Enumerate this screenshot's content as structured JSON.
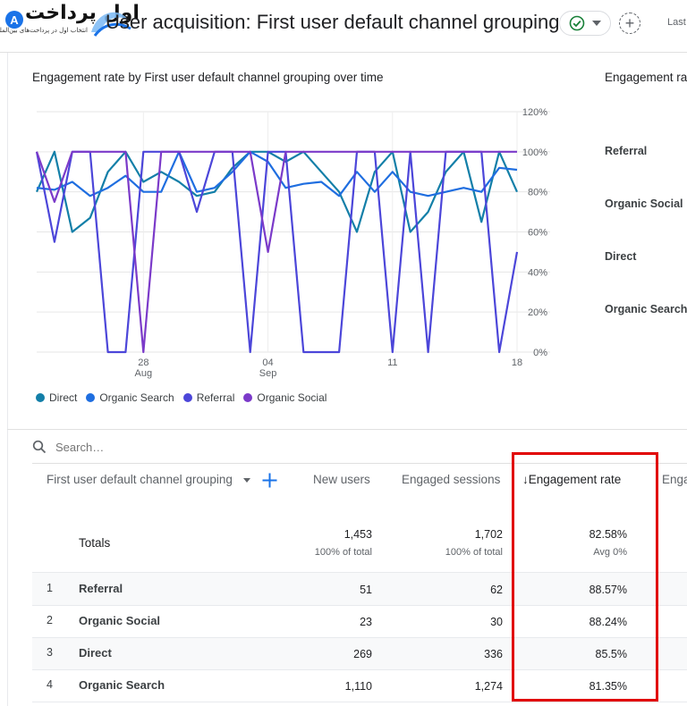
{
  "brand": {
    "badge": "A",
    "name": "اول پرداخت",
    "tagline": "انتخاب اول در پرداخت‌های بین‌المللی"
  },
  "header": {
    "title": "User acquisition: First user default channel grouping",
    "date_fragment": "Last"
  },
  "chart_card": {
    "title": "Engagement rate by First user default channel grouping over time",
    "side_title": "Engagement rate",
    "side_labels": [
      "Referral",
      "Organic Social",
      "Direct",
      "Organic Search"
    ]
  },
  "colors": {
    "direct": "#137fa8",
    "organic_search": "#1f6ee0",
    "referral": "#4c46d9",
    "organic_social": "#7b3ac9",
    "highlight": "#e10000"
  },
  "chart_data": {
    "type": "line",
    "ylabel": "",
    "xlabel": "",
    "ylim": [
      0,
      120
    ],
    "yticks": [
      "120%",
      "100%",
      "80%",
      "60%",
      "40%",
      "20%",
      "0%"
    ],
    "x_ticks": [
      {
        "day": "28",
        "month": "Aug",
        "index": 6
      },
      {
        "day": "04",
        "month": "Sep",
        "index": 13
      },
      {
        "day": "11",
        "month": "",
        "index": 20
      },
      {
        "day": "18",
        "month": "",
        "index": 27
      }
    ],
    "x_count": 28,
    "legend_position": "bottom-left",
    "grid": true,
    "series": [
      {
        "name": "Direct",
        "color": "#137fa8",
        "values": [
          80,
          100,
          60,
          67,
          90,
          100,
          85,
          90,
          85,
          78,
          80,
          92,
          100,
          100,
          95,
          100,
          90,
          80,
          60,
          90,
          100,
          60,
          70,
          90,
          100,
          65,
          100,
          80
        ]
      },
      {
        "name": "Organic Search",
        "color": "#1f6ee0",
        "values": [
          82,
          81,
          85,
          78,
          82,
          88,
          80,
          80,
          100,
          80,
          82,
          90,
          100,
          95,
          82,
          84,
          85,
          78,
          90,
          80,
          90,
          80,
          78,
          80,
          82,
          80,
          92,
          91
        ]
      },
      {
        "name": "Referral",
        "color": "#4c46d9",
        "values": [
          100,
          55,
          100,
          100,
          0,
          0,
          100,
          100,
          100,
          70,
          100,
          100,
          0,
          100,
          100,
          0,
          0,
          0,
          100,
          100,
          0,
          100,
          0,
          100,
          100,
          100,
          0,
          50
        ]
      },
      {
        "name": "Organic Social",
        "color": "#7b3ac9",
        "values": [
          100,
          75,
          100,
          100,
          100,
          100,
          0,
          100,
          100,
          100,
          100,
          100,
          100,
          50,
          100,
          100,
          100,
          100,
          100,
          100,
          100,
          100,
          100,
          100,
          100,
          100,
          100,
          100
        ]
      }
    ]
  },
  "search": {
    "placeholder": "Search…"
  },
  "table": {
    "dimension_header": "First user default channel grouping",
    "columns": [
      "New users",
      "Engaged sessions",
      "↓Engagement rate",
      "Enga"
    ],
    "totals": {
      "label": "Totals",
      "new_users": "1,453",
      "new_users_sub": "100% of total",
      "engaged_sessions": "1,702",
      "engaged_sessions_sub": "100% of total",
      "engagement_rate": "82.58%",
      "engagement_rate_sub": "Avg 0%"
    },
    "rows": [
      {
        "index": "1",
        "name": "Referral",
        "new_users": "51",
        "engaged_sessions": "62",
        "engagement_rate": "88.57%"
      },
      {
        "index": "2",
        "name": "Organic Social",
        "new_users": "23",
        "engaged_sessions": "30",
        "engagement_rate": "88.24%"
      },
      {
        "index": "3",
        "name": "Direct",
        "new_users": "269",
        "engaged_sessions": "336",
        "engagement_rate": "85.5%"
      },
      {
        "index": "4",
        "name": "Organic Search",
        "new_users": "1,110",
        "engaged_sessions": "1,274",
        "engagement_rate": "81.35%"
      }
    ]
  }
}
